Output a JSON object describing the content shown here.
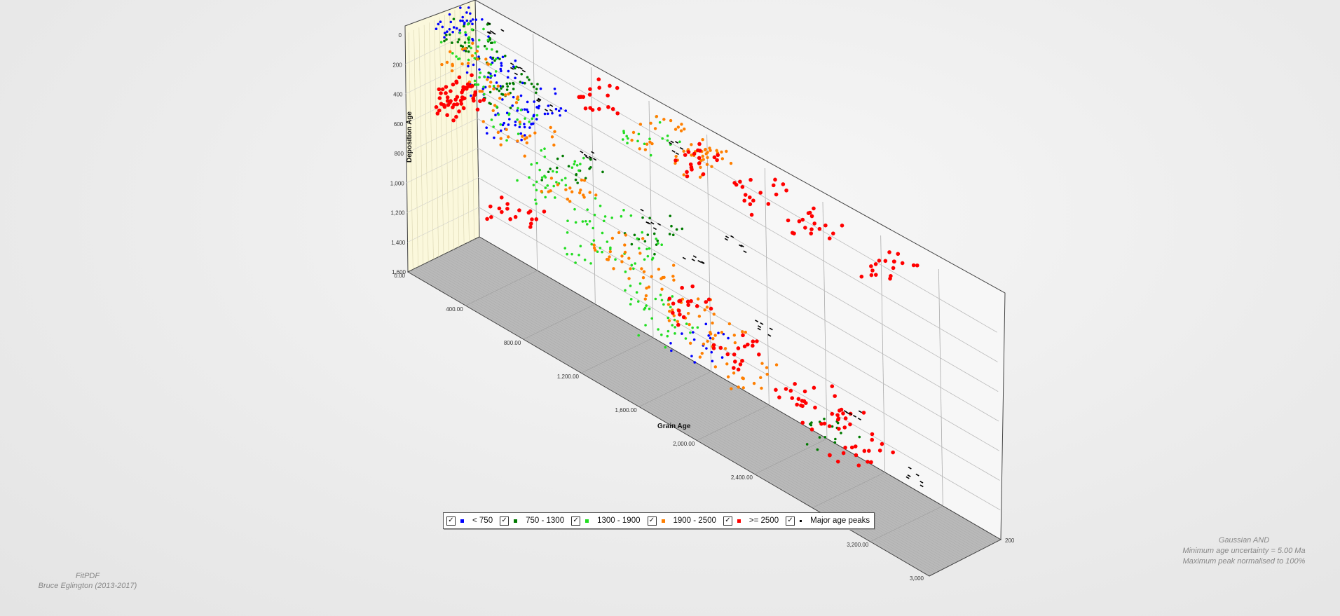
{
  "chart_data": {
    "type": "scatter",
    "is_3d": true,
    "xlabel": "Grain Age",
    "ylabel": "Deposition Age",
    "x_ticks": [
      "0.00",
      "400.00",
      "800.00",
      "1,200.00",
      "1,600.00",
      "2,000.00",
      "2,400.00",
      "3,200.00"
    ],
    "xlim": [
      0,
      3600
    ],
    "y_ticks": [
      "0",
      "200",
      "400",
      "600",
      "800",
      "1,000",
      "1,200",
      "1,400",
      "1,600"
    ],
    "ylim": [
      0,
      1600
    ],
    "depth_ticks_bottom": [
      "3,000",
      "200"
    ],
    "grid": true,
    "legend_position": "bottom-center",
    "series": [
      {
        "name": "< 750",
        "color": "#0000ff",
        "points": [
          [
            40,
            40
          ],
          [
            100,
            60
          ],
          [
            260,
            220
          ],
          [
            300,
            300
          ],
          [
            420,
            520
          ],
          [
            520,
            420
          ],
          [
            560,
            300
          ],
          [
            1700,
            1300
          ]
        ]
      },
      {
        "name": "750 - 1300",
        "color": "#007a00",
        "points": [
          [
            100,
            80
          ],
          [
            180,
            180
          ],
          [
            300,
            320
          ],
          [
            400,
            300
          ],
          [
            820,
            600
          ],
          [
            1400,
            700
          ],
          [
            2600,
            1380
          ]
        ]
      },
      {
        "name": "1300 - 1900",
        "color": "#22dd22",
        "points": [
          [
            80,
            180
          ],
          [
            200,
            300
          ],
          [
            400,
            500
          ],
          [
            700,
            640
          ],
          [
            1000,
            800
          ],
          [
            1300,
            900
          ],
          [
            600,
            840
          ],
          [
            900,
            1080
          ],
          [
            1300,
            1200
          ],
          [
            1500,
            1300
          ],
          [
            1380,
            40
          ]
        ]
      },
      {
        "name": "1900 - 2500",
        "color": "#ff7f00",
        "points": [
          [
            80,
            320
          ],
          [
            250,
            440
          ],
          [
            500,
            560
          ],
          [
            800,
            740
          ],
          [
            1100,
            960
          ],
          [
            1400,
            1000
          ],
          [
            1600,
            1100
          ],
          [
            1800,
            1200
          ],
          [
            2000,
            1300
          ],
          [
            1700,
            30
          ],
          [
            1400,
            20
          ],
          [
            1700,
            10
          ]
        ]
      },
      {
        "name": ">= 2500",
        "color": "#ff0000",
        "points": [
          [
            10,
            550
          ],
          [
            30,
            600
          ],
          [
            60,
            520
          ],
          [
            400,
            1150
          ],
          [
            1600,
            1050
          ],
          [
            2000,
            1150
          ],
          [
            2400,
            1200
          ],
          [
            2600,
            1300
          ],
          [
            2800,
            1400
          ],
          [
            1000,
            30
          ],
          [
            1700,
            20
          ],
          [
            2100,
            10
          ],
          [
            2500,
            10
          ],
          [
            3000,
            10
          ]
        ]
      },
      {
        "name": "Major age peaks",
        "color": "#000000",
        "points": [
          [
            150,
            120
          ],
          [
            300,
            300
          ],
          [
            500,
            420
          ],
          [
            800,
            600
          ],
          [
            1200,
            800
          ],
          [
            1500,
            900
          ],
          [
            2000,
            1100
          ],
          [
            2600,
            1300
          ],
          [
            3000,
            1500
          ],
          [
            1400,
            200
          ],
          [
            1800,
            600
          ]
        ]
      }
    ]
  },
  "footer_left": {
    "line1": "FitPDF",
    "line2": "Bruce Eglington (2013-2017)"
  },
  "footer_right": {
    "line1": "Gaussian AND",
    "line2": "Minimum age uncertainty = 5.00 Ma",
    "line3": "Maximum peak normalised to 100%"
  },
  "colors": {
    "floor": "#b9b9b9",
    "left_wall": "#fbf8dc",
    "back_wall": "#f7f7f7"
  }
}
